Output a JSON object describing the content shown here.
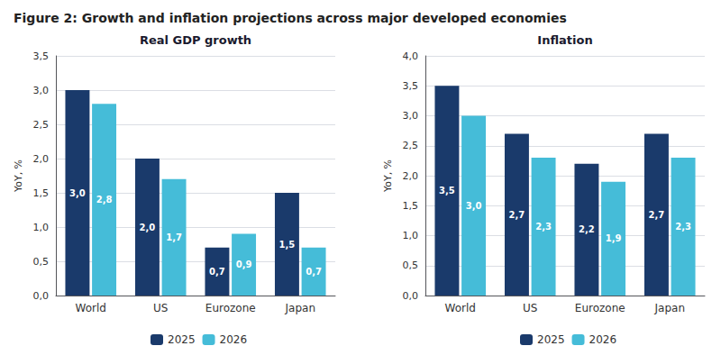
{
  "title": "Figure 2: Growth and inflation projections across major developed economies",
  "chart_data": [
    {
      "type": "bar",
      "title": "Real GDP growth",
      "ylabel": "YoY, %",
      "categories": [
        "World",
        "US",
        "Eurozone",
        "Japan"
      ],
      "series": [
        {
          "name": "2025",
          "color": "#1a3a6b",
          "values": [
            3.0,
            2.0,
            0.7,
            1.5
          ],
          "value_labels": [
            "3,0",
            "2,0",
            "0,7",
            "1,5"
          ]
        },
        {
          "name": "2026",
          "color": "#45bcd8",
          "values": [
            2.8,
            1.7,
            0.9,
            0.7
          ],
          "value_labels": [
            "2,8",
            "1,7",
            "0,9",
            "0,7"
          ]
        }
      ],
      "ylim": [
        0,
        3.5
      ],
      "yticks": [
        {
          "value": 0.0,
          "label": "0,0"
        },
        {
          "value": 0.5,
          "label": "0,5"
        },
        {
          "value": 1.0,
          "label": "1,0"
        },
        {
          "value": 1.5,
          "label": "1,5"
        },
        {
          "value": 2.0,
          "label": "2,0"
        },
        {
          "value": 2.5,
          "label": "2,5"
        },
        {
          "value": 3.0,
          "label": "3,0"
        },
        {
          "value": 3.5,
          "label": "3,5"
        }
      ],
      "grid": true,
      "legend": "bottom",
      "data_labels": true
    },
    {
      "type": "bar",
      "title": "Inflation",
      "ylabel": "YoY, %",
      "categories": [
        "World",
        "US",
        "Eurozone",
        "Japan"
      ],
      "series": [
        {
          "name": "2025",
          "color": "#1a3a6b",
          "values": [
            3.5,
            2.7,
            2.2,
            2.7
          ],
          "value_labels": [
            "3,5",
            "2,7",
            "2,2",
            "2,7"
          ]
        },
        {
          "name": "2026",
          "color": "#45bcd8",
          "values": [
            3.0,
            2.3,
            1.9,
            2.3
          ],
          "value_labels": [
            "3,0",
            "2,3",
            "1,9",
            "2,3"
          ]
        }
      ],
      "ylim": [
        0,
        4.0
      ],
      "yticks": [
        {
          "value": 0.0,
          "label": "0,0"
        },
        {
          "value": 0.5,
          "label": "0,5"
        },
        {
          "value": 1.0,
          "label": "1,0"
        },
        {
          "value": 1.5,
          "label": "1,5"
        },
        {
          "value": 2.0,
          "label": "2,0"
        },
        {
          "value": 2.5,
          "label": "2,5"
        },
        {
          "value": 3.0,
          "label": "3,0"
        },
        {
          "value": 3.5,
          "label": "3,5"
        },
        {
          "value": 4.0,
          "label": "4,0"
        }
      ],
      "grid": true,
      "legend": "bottom",
      "data_labels": true
    }
  ]
}
